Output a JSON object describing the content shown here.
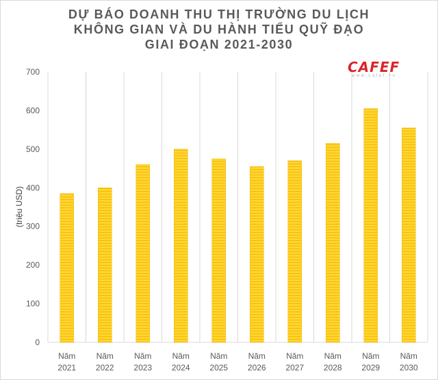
{
  "title": {
    "line1": "DỰ BÁO DOANH THU THỊ TRƯỜNG DU LỊCH",
    "line2": "KHÔNG GIAN VÀ DU HÀNH TIỂU QUỸ ĐẠO",
    "line3": "GIAI ĐOẠN 2021-2030"
  },
  "logo": {
    "text": "CAFEF",
    "subtext": "www.cafef.vn"
  },
  "colors": {
    "bar": "#FFD52E",
    "bar_stripe": "#F3B80A",
    "grid": "#d9d9d9",
    "title": "#595959",
    "brand": "#d9252b"
  },
  "chart_data": {
    "type": "bar",
    "title": "DỰ BÁO DOANH THU THỊ TRƯỜNG DU LỊCH KHÔNG GIAN VÀ DU HÀNH TIỂU QUỸ ĐẠO GIAI ĐOẠN 2021-2030",
    "xlabel": "",
    "ylabel": "(triệu USD)",
    "ylim": [
      0,
      700
    ],
    "yticks": [
      0,
      100,
      200,
      300,
      400,
      500,
      600,
      700
    ],
    "grid": "vertical category separators",
    "categories": [
      [
        "Năm",
        "2021"
      ],
      [
        "Năm",
        "2022"
      ],
      [
        "Năm",
        "2023"
      ],
      [
        "Năm",
        "2024"
      ],
      [
        "Năm",
        "2025"
      ],
      [
        "Năm",
        "2026"
      ],
      [
        "Năm",
        "2027"
      ],
      [
        "Năm",
        "2028"
      ],
      [
        "Năm",
        "2029"
      ],
      [
        "Năm",
        "2030"
      ]
    ],
    "values": [
      385,
      400,
      460,
      500,
      475,
      455,
      470,
      515,
      605,
      555
    ]
  }
}
